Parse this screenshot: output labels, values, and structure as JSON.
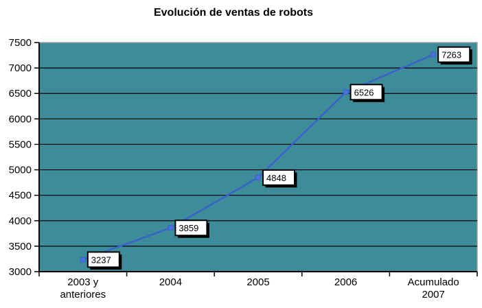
{
  "chart_data": {
    "type": "line",
    "title": "Evolución de ventas de robots",
    "categories": [
      "2003 y\nanteriores",
      "2004",
      "2005",
      "2006",
      "Acumulado\n2007"
    ],
    "values": [
      3237,
      3859,
      4848,
      6526,
      7263
    ],
    "data_labels": [
      "3237",
      "3859",
      "4848",
      "6526",
      "7263"
    ],
    "xlabel": "",
    "ylabel": "",
    "ylim": [
      3000,
      7500
    ],
    "ytick_step": 500,
    "ytick_labels": [
      "3000",
      "3500",
      "4000",
      "4500",
      "5000",
      "5500",
      "6000",
      "6500",
      "7000",
      "7500"
    ],
    "grid": "horizontal",
    "legend": "none",
    "marker": "square",
    "colors": {
      "background": "#FFFFFF",
      "plot_bg": "#3E8C99",
      "plot_border": "#A0A0A0",
      "grid": "#000000",
      "axis": "#000000",
      "line": "#3A62C8",
      "marker": "#4C74D8",
      "label_box_bg": "#FFFFFF",
      "label_box_border": "#000000",
      "label_box_shadow": "#000000",
      "text": "#000000"
    }
  }
}
